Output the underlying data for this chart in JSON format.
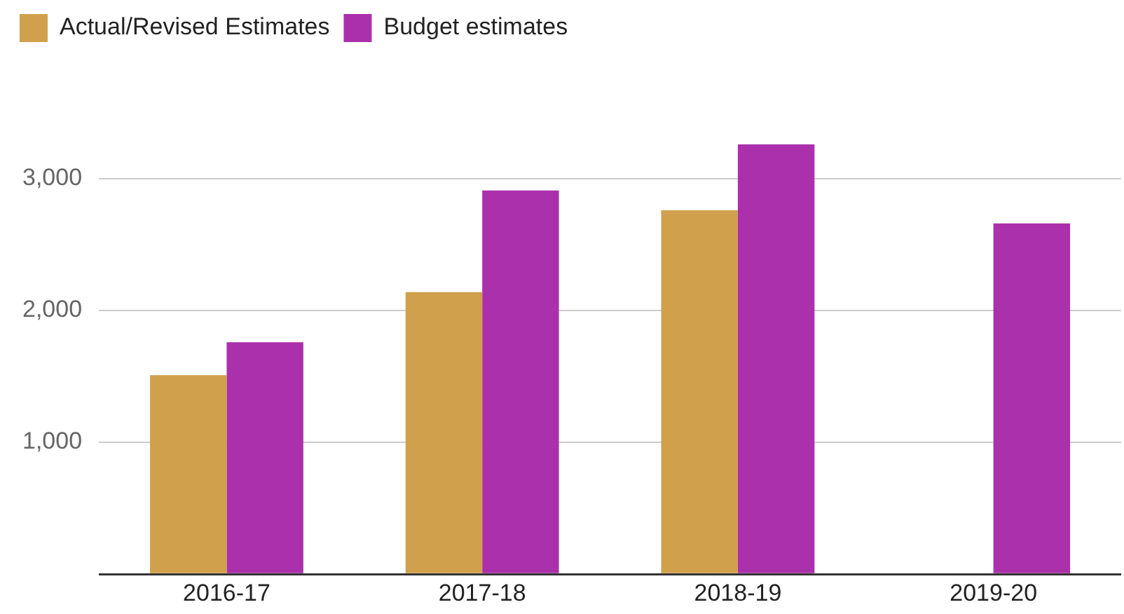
{
  "chart_data": {
    "type": "bar",
    "categories": [
      "2016-17",
      "2017-18",
      "2018-19",
      "2019-20"
    ],
    "series": [
      {
        "name": "Actual/Revised Estimates",
        "color": "#d0a04c",
        "values": [
          1510,
          2140,
          2760,
          null
        ]
      },
      {
        "name": "Budget estimates",
        "color": "#ab30ab",
        "values": [
          1760,
          2910,
          3260,
          2660
        ]
      }
    ],
    "ylim": [
      0,
      3260
    ],
    "yticks": [
      {
        "value": 0,
        "label": null
      },
      {
        "value": 1000,
        "label": "1,000"
      },
      {
        "value": 2000,
        "label": "2,000"
      },
      {
        "value": 3000,
        "label": "3,000"
      }
    ],
    "grid": "y",
    "legend": "top left"
  }
}
